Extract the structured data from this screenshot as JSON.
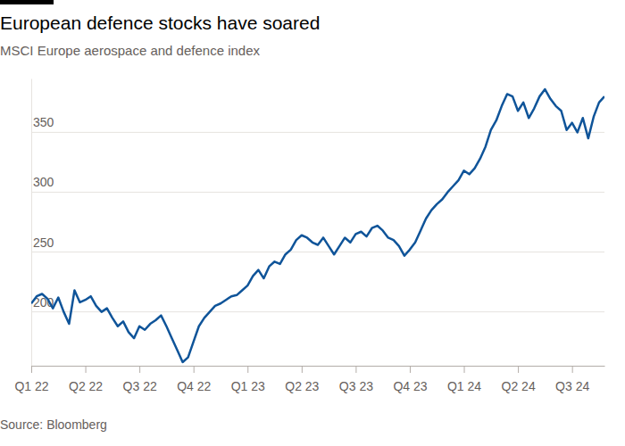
{
  "chart_data": {
    "type": "line",
    "title": "European defence stocks have soared",
    "subtitle": "MSCI Europe aerospace and defence index",
    "source": "Source: Bloomberg",
    "color": "#0f5499",
    "grid": true,
    "xlim": [
      0,
      10.6
    ],
    "xticks": [
      {
        "value": 0,
        "label": "Q1 22"
      },
      {
        "value": 1,
        "label": "Q2 22"
      },
      {
        "value": 2,
        "label": "Q3 22"
      },
      {
        "value": 3,
        "label": "Q4 22"
      },
      {
        "value": 4,
        "label": "Q1 23"
      },
      {
        "value": 5,
        "label": "Q2 23"
      },
      {
        "value": 6,
        "label": "Q3 23"
      },
      {
        "value": 7,
        "label": "Q4 23"
      },
      {
        "value": 8,
        "label": "Q1 24"
      },
      {
        "value": 9,
        "label": "Q2 24"
      },
      {
        "value": 10,
        "label": "Q3 24"
      }
    ],
    "ylim": [
      155,
      395
    ],
    "yticks": [
      200,
      250,
      300,
      350
    ],
    "x": [
      0.0,
      0.1,
      0.2,
      0.3,
      0.4,
      0.5,
      0.6,
      0.7,
      0.8,
      0.9,
      1.0,
      1.1,
      1.2,
      1.3,
      1.4,
      1.5,
      1.6,
      1.7,
      1.8,
      1.9,
      2.0,
      2.1,
      2.2,
      2.3,
      2.4,
      2.5,
      2.6,
      2.7,
      2.8,
      2.9,
      3.0,
      3.1,
      3.2,
      3.3,
      3.4,
      3.5,
      3.6,
      3.7,
      3.8,
      3.9,
      4.0,
      4.1,
      4.2,
      4.3,
      4.4,
      4.5,
      4.6,
      4.7,
      4.8,
      4.9,
      5.0,
      5.1,
      5.2,
      5.3,
      5.4,
      5.5,
      5.6,
      5.7,
      5.8,
      5.9,
      6.0,
      6.1,
      6.2,
      6.3,
      6.4,
      6.5,
      6.6,
      6.7,
      6.8,
      6.9,
      7.0,
      7.1,
      7.2,
      7.3,
      7.4,
      7.5,
      7.6,
      7.7,
      7.8,
      7.9,
      8.0,
      8.1,
      8.2,
      8.3,
      8.4,
      8.5,
      8.6,
      8.7,
      8.8,
      8.9,
      9.0,
      9.1,
      9.2,
      9.3,
      9.4,
      9.5,
      9.6,
      9.7,
      9.8,
      9.9,
      10.0,
      10.1,
      10.2,
      10.3,
      10.4,
      10.5,
      10.6
    ],
    "values": [
      207,
      213,
      215,
      211,
      203,
      212,
      200,
      190,
      218,
      208,
      210,
      213,
      205,
      200,
      203,
      195,
      188,
      192,
      183,
      178,
      188,
      185,
      190,
      193,
      197,
      188,
      178,
      168,
      158,
      162,
      175,
      188,
      195,
      200,
      205,
      207,
      210,
      213,
      214,
      218,
      222,
      230,
      235,
      228,
      238,
      242,
      240,
      248,
      252,
      260,
      264,
      262,
      258,
      256,
      262,
      255,
      248,
      255,
      262,
      258,
      265,
      267,
      263,
      270,
      272,
      268,
      262,
      260,
      255,
      247,
      252,
      258,
      268,
      278,
      285,
      290,
      294,
      300,
      305,
      310,
      318,
      315,
      320,
      328,
      338,
      352,
      360,
      372,
      382,
      380,
      368,
      375,
      362,
      370,
      380,
      386,
      378,
      372,
      368,
      352,
      358,
      350,
      362,
      345,
      363,
      375,
      380
    ]
  }
}
